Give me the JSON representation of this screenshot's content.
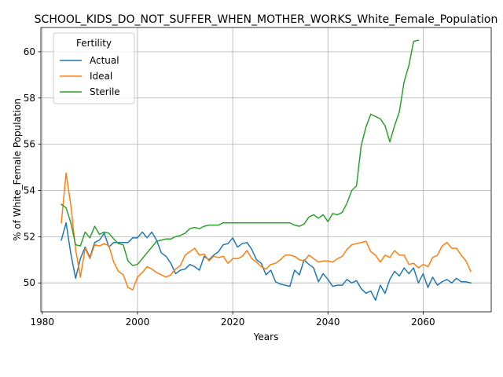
{
  "chart_data": {
    "type": "line",
    "title": "SCHOOL_KIDS_DO_NOT_SUFFER_WHEN_MOTHER_WORKS_White_Female_Population",
    "xlabel": "Years",
    "ylabel": "% of White_Female Population",
    "xlim": [
      1979.7,
      2074.3
    ],
    "ylim": [
      48.75,
      61.05
    ],
    "xticks": [
      1980,
      2000,
      2020,
      2040,
      2060
    ],
    "yticks": [
      50,
      52,
      54,
      56,
      58,
      60
    ],
    "grid": true,
    "legend": {
      "title": "Fertility",
      "placement": "top-left"
    },
    "series": [
      {
        "name": "Actual",
        "color": "#1f77b4",
        "x": [
          1984,
          1985,
          1986,
          1987,
          1988,
          1989,
          1990,
          1991,
          1992,
          1993,
          1994,
          1995,
          1996,
          1997,
          1998,
          1999,
          2000,
          2001,
          2002,
          2003,
          2004,
          2005,
          2006,
          2007,
          2008,
          2009,
          2010,
          2011,
          2012,
          2013,
          2014,
          2015,
          2016,
          2017,
          2018,
          2019,
          2020,
          2021,
          2022,
          2023,
          2024,
          2025,
          2026,
          2027,
          2028,
          2029,
          2030,
          2031,
          2032,
          2033,
          2034,
          2035,
          2036,
          2037,
          2038,
          2039,
          2040,
          2041,
          2042,
          2043,
          2044,
          2045,
          2046,
          2047,
          2048,
          2049,
          2050,
          2051,
          2052,
          2053,
          2054,
          2055,
          2056,
          2057,
          2058,
          2059,
          2060,
          2061,
          2062,
          2063,
          2064,
          2065,
          2066,
          2067,
          2068,
          2069,
          2070
        ],
        "y": [
          51.85,
          52.6,
          51.25,
          50.2,
          51.05,
          51.55,
          51.1,
          51.75,
          51.85,
          52.15,
          51.55,
          51.75,
          51.75,
          51.75,
          51.75,
          51.95,
          51.95,
          52.2,
          51.95,
          52.2,
          51.85,
          51.3,
          51.15,
          50.85,
          50.4,
          50.55,
          50.6,
          50.8,
          50.7,
          50.55,
          51.15,
          51.0,
          51.2,
          51.35,
          51.65,
          51.7,
          51.95,
          51.55,
          51.7,
          51.75,
          51.45,
          51.0,
          50.85,
          50.35,
          50.55,
          50.05,
          49.95,
          49.9,
          49.85,
          50.55,
          50.35,
          51.0,
          50.8,
          50.65,
          50.05,
          50.4,
          50.15,
          49.85,
          49.9,
          49.9,
          50.15,
          50.0,
          50.1,
          49.75,
          49.55,
          49.65,
          49.25,
          49.9,
          49.55,
          50.15,
          50.5,
          50.3,
          50.65,
          50.4,
          50.65,
          50.0,
          50.4,
          49.8,
          50.25,
          49.9,
          50.05,
          50.15,
          50.0,
          50.2,
          50.05,
          50.05,
          50.0
        ]
      },
      {
        "name": "Ideal",
        "color": "#ff7f0e",
        "x": [
          1984,
          1985,
          1986,
          1987,
          1988,
          1989,
          1990,
          1991,
          1992,
          1993,
          1994,
          1995,
          1996,
          1997,
          1998,
          1999,
          2000,
          2001,
          2002,
          2003,
          2004,
          2005,
          2006,
          2007,
          2008,
          2009,
          2010,
          2011,
          2012,
          2013,
          2014,
          2015,
          2016,
          2017,
          2018,
          2019,
          2020,
          2021,
          2022,
          2023,
          2024,
          2025,
          2026,
          2027,
          2028,
          2029,
          2030,
          2031,
          2032,
          2033,
          2034,
          2035,
          2036,
          2037,
          2038,
          2039,
          2040,
          2041,
          2042,
          2043,
          2044,
          2045,
          2046,
          2047,
          2048,
          2049,
          2050,
          2051,
          2052,
          2053,
          2054,
          2055,
          2056,
          2057,
          2058,
          2059,
          2060,
          2061,
          2062,
          2063,
          2064,
          2065,
          2066,
          2067,
          2068,
          2069,
          2070
        ],
        "y": [
          52.6,
          54.75,
          53.35,
          51.45,
          50.25,
          51.5,
          51.05,
          51.65,
          51.6,
          51.7,
          51.6,
          50.9,
          50.5,
          50.35,
          49.8,
          49.7,
          50.25,
          50.45,
          50.7,
          50.6,
          50.45,
          50.35,
          50.25,
          50.35,
          50.6,
          50.75,
          51.2,
          51.35,
          51.5,
          51.2,
          51.25,
          50.95,
          51.15,
          51.1,
          51.15,
          50.85,
          51.05,
          51.05,
          51.15,
          51.4,
          51.05,
          50.9,
          50.7,
          50.6,
          50.8,
          50.85,
          51.0,
          51.2,
          51.2,
          51.15,
          51.0,
          50.95,
          51.2,
          51.05,
          50.9,
          50.95,
          50.95,
          50.9,
          51.05,
          51.15,
          51.45,
          51.65,
          51.7,
          51.75,
          51.8,
          51.35,
          51.2,
          50.9,
          51.2,
          51.1,
          51.4,
          51.2,
          51.2,
          50.8,
          50.85,
          50.65,
          50.8,
          50.7,
          51.1,
          51.2,
          51.6,
          51.75,
          51.5,
          51.5,
          51.2,
          50.95,
          50.5
        ]
      },
      {
        "name": "Sterile",
        "color": "#2ca02c",
        "x": [
          1984,
          1985,
          1986,
          1987,
          1988,
          1989,
          1990,
          1991,
          1992,
          1993,
          1994,
          1995,
          1996,
          1997,
          1998,
          1999,
          2000,
          2001,
          2002,
          2003,
          2004,
          2005,
          2006,
          2007,
          2008,
          2009,
          2010,
          2011,
          2012,
          2013,
          2014,
          2015,
          2016,
          2017,
          2018,
          2019,
          2020,
          2021,
          2022,
          2023,
          2024,
          2025,
          2026,
          2027,
          2028,
          2029,
          2030,
          2031,
          2032,
          2033,
          2034,
          2035,
          2036,
          2037,
          2038,
          2039,
          2040,
          2041,
          2042,
          2043,
          2044,
          2045,
          2046,
          2047,
          2048,
          2049,
          2050,
          2051,
          2052,
          2053,
          2054,
          2055,
          2056,
          2057,
          2058,
          2059
        ],
        "y": [
          53.4,
          53.25,
          52.6,
          51.65,
          51.6,
          52.2,
          51.95,
          52.45,
          52.1,
          52.2,
          52.15,
          51.9,
          51.7,
          51.65,
          50.95,
          50.75,
          50.8,
          51.05,
          51.3,
          51.55,
          51.8,
          51.85,
          51.9,
          51.9,
          52.0,
          52.05,
          52.15,
          52.35,
          52.4,
          52.35,
          52.45,
          52.5,
          52.5,
          52.5,
          52.6,
          52.6,
          52.6,
          52.6,
          52.6,
          52.6,
          52.6,
          52.6,
          52.6,
          52.6,
          52.6,
          52.6,
          52.6,
          52.6,
          52.6,
          52.5,
          52.45,
          52.55,
          52.85,
          52.95,
          52.8,
          52.95,
          52.65,
          53.0,
          52.95,
          53.05,
          53.45,
          54.0,
          54.2,
          55.95,
          56.75,
          57.3,
          57.2,
          57.1,
          56.8,
          56.1,
          56.8,
          57.4,
          58.7,
          59.4,
          60.45,
          60.5
        ]
      }
    ]
  }
}
